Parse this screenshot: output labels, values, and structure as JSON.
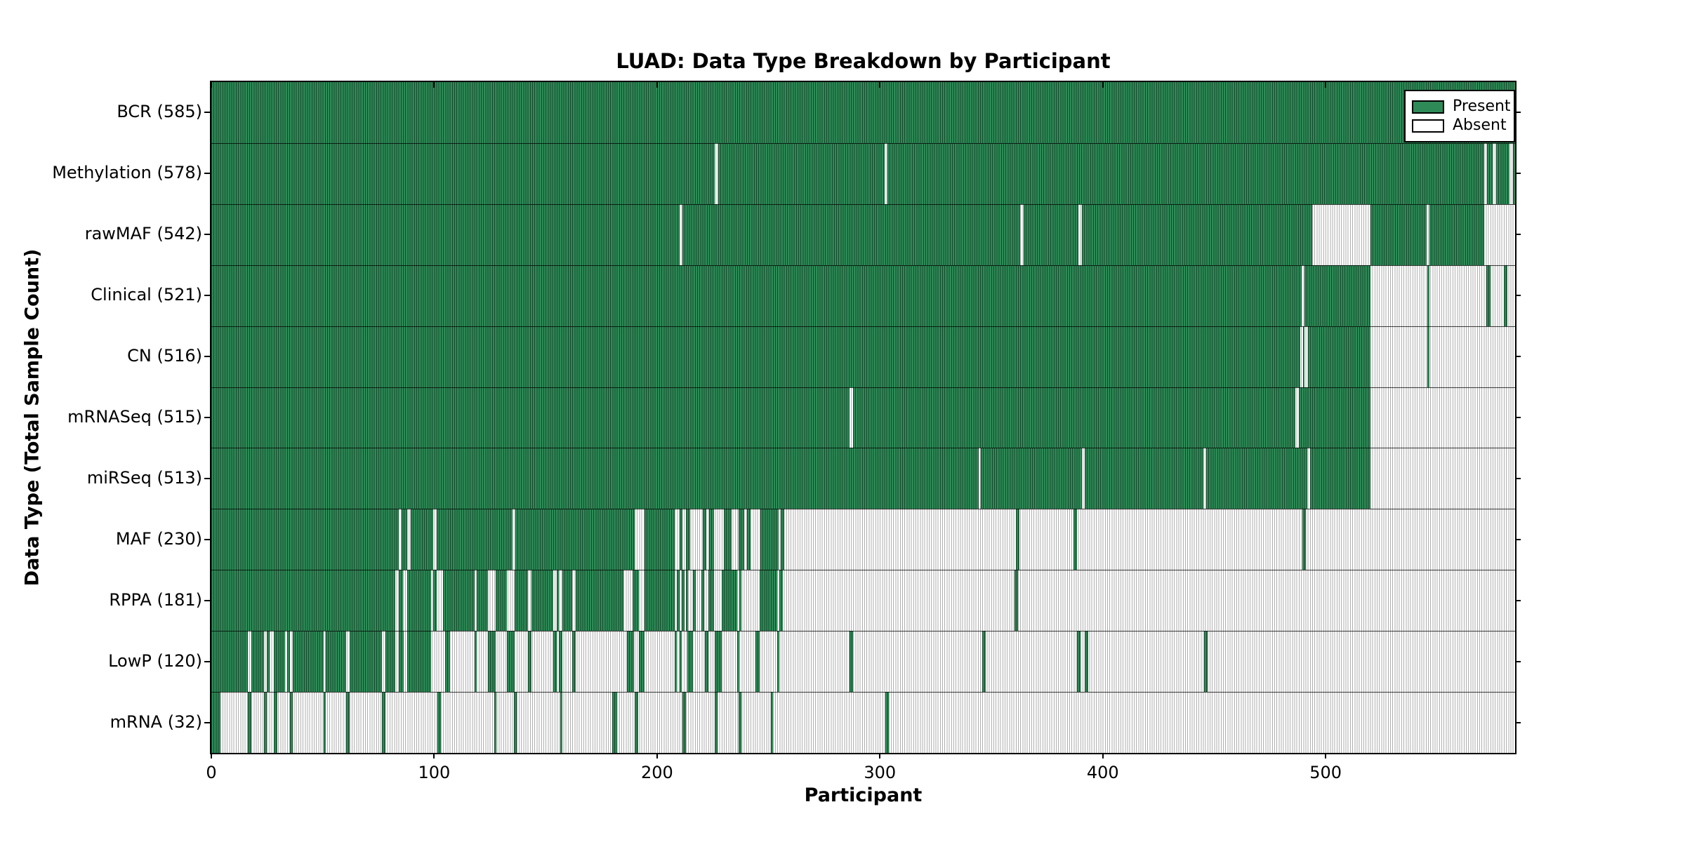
{
  "title": "LUAD: Data Type Breakdown by Participant",
  "axes": {
    "xlabel": "Participant",
    "ylabel": "Data Type (Total Sample Count)"
  },
  "legend_items": [
    {
      "name": "present",
      "label": "Present",
      "color": "#2e8b57"
    },
    {
      "name": "absent",
      "label": "Absent",
      "color": "#ffffff"
    }
  ],
  "colors": {
    "present_fill": "#2e8b57",
    "present_edge": "#16482c",
    "absent_fill": "#ffffff",
    "absent_edge": "#aeaeae",
    "frame": "#000000",
    "background": "#ffffff"
  },
  "chart_data": {
    "type": "heatmap",
    "title": "LUAD: Data Type Breakdown by Participant",
    "xlabel": "Participant",
    "ylabel": "Data Type (Total Sample Count)",
    "x_ticks": [
      0,
      100,
      200,
      300,
      400,
      500
    ],
    "xlim": [
      0,
      585
    ],
    "grid": false,
    "legend_position": "upper right",
    "cell_encoding": "1 = Present (green), 0 = Absent (white); rows list present participant-index ranges",
    "rows": [
      {
        "label": "BCR (585)",
        "data_type": "BCR",
        "total_samples": 585,
        "present_ranges": [
          [
            0,
            585
          ]
        ]
      },
      {
        "label": "Methylation (578)",
        "data_type": "Methylation",
        "total_samples": 578,
        "present_ranges": [
          [
            0,
            226
          ],
          [
            227.5,
            302
          ],
          [
            303.5,
            571
          ],
          [
            572.5,
            575
          ],
          [
            576.5,
            582.5
          ],
          [
            584,
            585
          ]
        ]
      },
      {
        "label": "rawMAF (542)",
        "data_type": "rawMAF",
        "total_samples": 542,
        "present_ranges": [
          [
            0,
            210
          ],
          [
            211.5,
            363
          ],
          [
            364.5,
            389
          ],
          [
            390.5,
            494
          ],
          [
            520,
            545.4
          ],
          [
            546.6,
            571
          ]
        ]
      },
      {
        "label": "Clinical (521)",
        "data_type": "Clinical",
        "total_samples": 521,
        "present_ranges": [
          [
            0,
            489.2
          ],
          [
            490.4,
            520
          ],
          [
            545.6,
            546.6
          ],
          [
            572,
            574
          ],
          [
            580,
            581.5
          ]
        ]
      },
      {
        "label": "CN (516)",
        "data_type": "CN",
        "total_samples": 516,
        "present_ranges": [
          [
            0,
            488.5
          ],
          [
            489.8,
            490.6
          ],
          [
            492,
            520
          ],
          [
            545.6,
            546.6
          ]
        ]
      },
      {
        "label": "mRNASeq (515)",
        "data_type": "mRNASeq",
        "total_samples": 515,
        "present_ranges": [
          [
            0,
            286.5
          ],
          [
            288,
            486.5
          ],
          [
            488,
            520
          ]
        ]
      },
      {
        "label": "miRSeq (513)",
        "data_type": "miRSeq",
        "total_samples": 513,
        "present_ranges": [
          [
            0,
            344.3
          ],
          [
            345.4,
            390.7
          ],
          [
            391.9,
            445.2
          ],
          [
            446.4,
            491.9
          ],
          [
            493,
            520
          ]
        ]
      },
      {
        "label": "MAF (230)",
        "data_type": "MAF",
        "total_samples": 230,
        "present_ranges": [
          [
            0,
            84
          ],
          [
            85.5,
            88
          ],
          [
            89.5,
            99.5
          ],
          [
            101,
            135
          ],
          [
            136.5,
            190
          ],
          [
            194.5,
            208
          ],
          [
            210,
            211.5
          ],
          [
            213,
            215
          ],
          [
            220.5,
            222
          ],
          [
            223.5,
            225.5
          ],
          [
            230,
            233.5
          ],
          [
            236.5,
            239
          ],
          [
            240.5,
            242
          ],
          [
            246.5,
            254.5
          ],
          [
            255.5,
            257
          ],
          [
            361,
            362.5
          ],
          [
            387,
            388.5
          ],
          [
            489.5,
            491
          ]
        ]
      },
      {
        "label": "RPPA (181)",
        "data_type": "RPPA",
        "total_samples": 181,
        "present_ranges": [
          [
            0,
            82.5
          ],
          [
            84,
            86
          ],
          [
            88,
            98.5
          ],
          [
            99.5,
            101
          ],
          [
            104,
            118
          ],
          [
            119,
            124
          ],
          [
            127.5,
            132.5
          ],
          [
            136,
            142
          ],
          [
            143.5,
            153.5
          ],
          [
            155,
            156
          ],
          [
            157.5,
            162
          ],
          [
            163.5,
            185
          ],
          [
            189,
            192
          ],
          [
            194.5,
            208
          ],
          [
            209,
            210
          ],
          [
            211,
            212.2
          ],
          [
            212.8,
            213.8
          ],
          [
            216,
            217.5
          ],
          [
            220,
            221
          ],
          [
            223,
            225.5
          ],
          [
            229,
            236
          ],
          [
            237,
            238
          ],
          [
            246,
            254
          ],
          [
            255,
            256.5
          ],
          [
            360.5,
            362
          ]
        ]
      },
      {
        "label": "LowP (120)",
        "data_type": "LowP",
        "total_samples": 120,
        "present_ranges": [
          [
            0,
            16.5
          ],
          [
            18,
            23.5
          ],
          [
            25,
            26
          ],
          [
            28,
            33
          ],
          [
            34,
            35.3
          ],
          [
            36.5,
            50.5
          ],
          [
            51.5,
            60.5
          ],
          [
            62,
            76.5
          ],
          [
            78,
            82.5
          ],
          [
            84,
            86.3
          ],
          [
            88,
            98.5
          ],
          [
            105,
            107
          ],
          [
            118,
            119
          ],
          [
            124,
            127.5
          ],
          [
            132.5,
            136
          ],
          [
            142,
            143.5
          ],
          [
            153.5,
            155
          ],
          [
            156,
            157.5
          ],
          [
            162,
            163.5
          ],
          [
            186.5,
            189.5
          ],
          [
            192,
            194.5
          ],
          [
            208,
            209
          ],
          [
            210,
            211
          ],
          [
            213.5,
            216
          ],
          [
            221.5,
            223
          ],
          [
            226,
            229
          ],
          [
            236,
            237
          ],
          [
            244,
            246
          ],
          [
            254,
            255
          ],
          [
            286.5,
            288
          ],
          [
            346,
            347.5
          ],
          [
            388.5,
            390
          ],
          [
            392,
            393.5
          ],
          [
            445.5,
            447
          ]
        ]
      },
      {
        "label": "mRNA (32)",
        "data_type": "mRNA",
        "total_samples": 32,
        "present_ranges": [
          [
            0,
            4
          ],
          [
            16.5,
            18
          ],
          [
            23.5,
            25
          ],
          [
            28,
            29.5
          ],
          [
            35.3,
            36.5
          ],
          [
            50.5,
            51.5
          ],
          [
            60.5,
            62
          ],
          [
            76.5,
            78
          ],
          [
            101.5,
            103
          ],
          [
            126.8,
            128
          ],
          [
            135.8,
            137
          ],
          [
            156.5,
            157.5
          ],
          [
            180,
            182
          ],
          [
            190,
            191.5
          ],
          [
            211.5,
            213
          ],
          [
            226,
            227
          ],
          [
            236.5,
            238
          ],
          [
            251,
            252
          ],
          [
            302.5,
            304
          ]
        ]
      }
    ]
  }
}
